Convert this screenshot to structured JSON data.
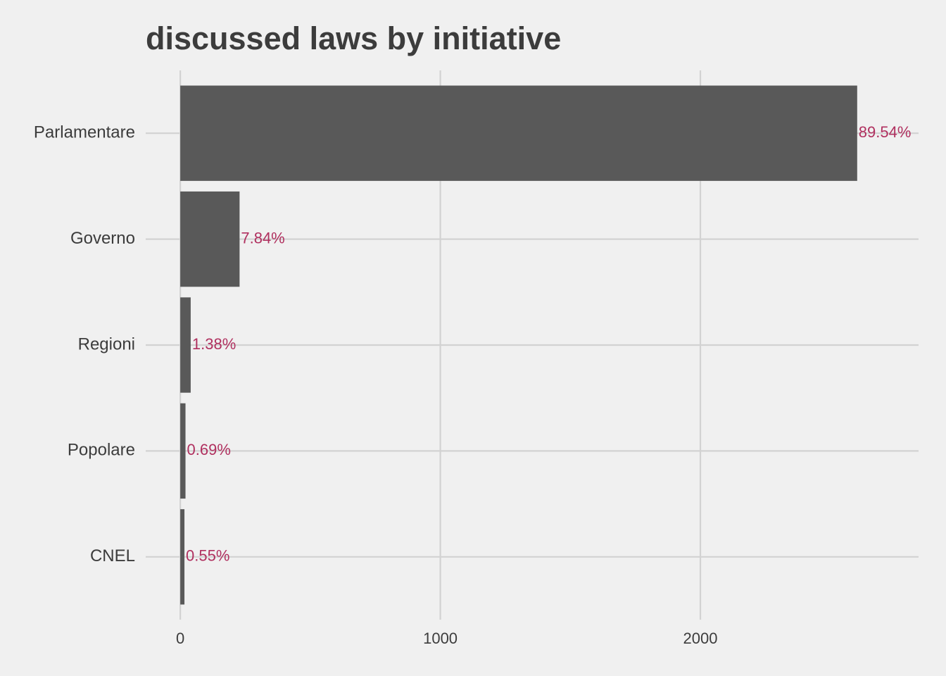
{
  "chart_data": {
    "type": "bar",
    "orientation": "horizontal",
    "title": "discussed laws by initiative",
    "categories": [
      "Parlamentare",
      "Governo",
      "Regioni",
      "Popolare",
      "CNEL"
    ],
    "values": [
      2603,
      228,
      40,
      20,
      16
    ],
    "value_labels": [
      "89.54%",
      "7.84%",
      "1.38%",
      "0.69%",
      "0.55%"
    ],
    "color": "#595959",
    "label_color": "#b0305f",
    "xlim": [
      -133,
      2839
    ],
    "xticks": [
      0,
      1000,
      2000
    ],
    "grid": true
  }
}
